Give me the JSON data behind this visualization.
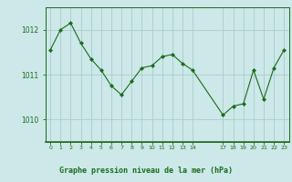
{
  "x": [
    0,
    1,
    2,
    3,
    4,
    5,
    6,
    7,
    8,
    9,
    10,
    11,
    12,
    13,
    14,
    17,
    18,
    19,
    20,
    21,
    22,
    23
  ],
  "y": [
    1011.55,
    1012.0,
    1012.15,
    1011.7,
    1011.35,
    1011.1,
    1010.75,
    1010.55,
    1010.85,
    1011.15,
    1011.2,
    1011.4,
    1011.45,
    1011.25,
    1011.1,
    1010.1,
    1010.3,
    1010.35,
    1011.1,
    1010.45,
    1011.15,
    1011.55
  ],
  "ylim": [
    1009.5,
    1012.5
  ],
  "xlim": [
    -0.5,
    23.5
  ],
  "yticks": [
    1010,
    1011,
    1012
  ],
  "xticks": [
    0,
    1,
    2,
    3,
    4,
    5,
    6,
    7,
    8,
    9,
    10,
    11,
    12,
    13,
    14,
    17,
    18,
    19,
    20,
    21,
    22,
    23
  ],
  "line_color": "#1a6b1a",
  "marker_color": "#1a6b1a",
  "bg_color": "#cce8e8",
  "grid_color": "#aacccc",
  "xlabel": "Graphe pression niveau de la mer (hPa)",
  "xlabel_color": "#1a6b1a",
  "tick_color": "#1a6b1a",
  "spine_color": "#1a6b1a",
  "divider_color": "#2a6b2a",
  "label_bg": "#cce8e8"
}
